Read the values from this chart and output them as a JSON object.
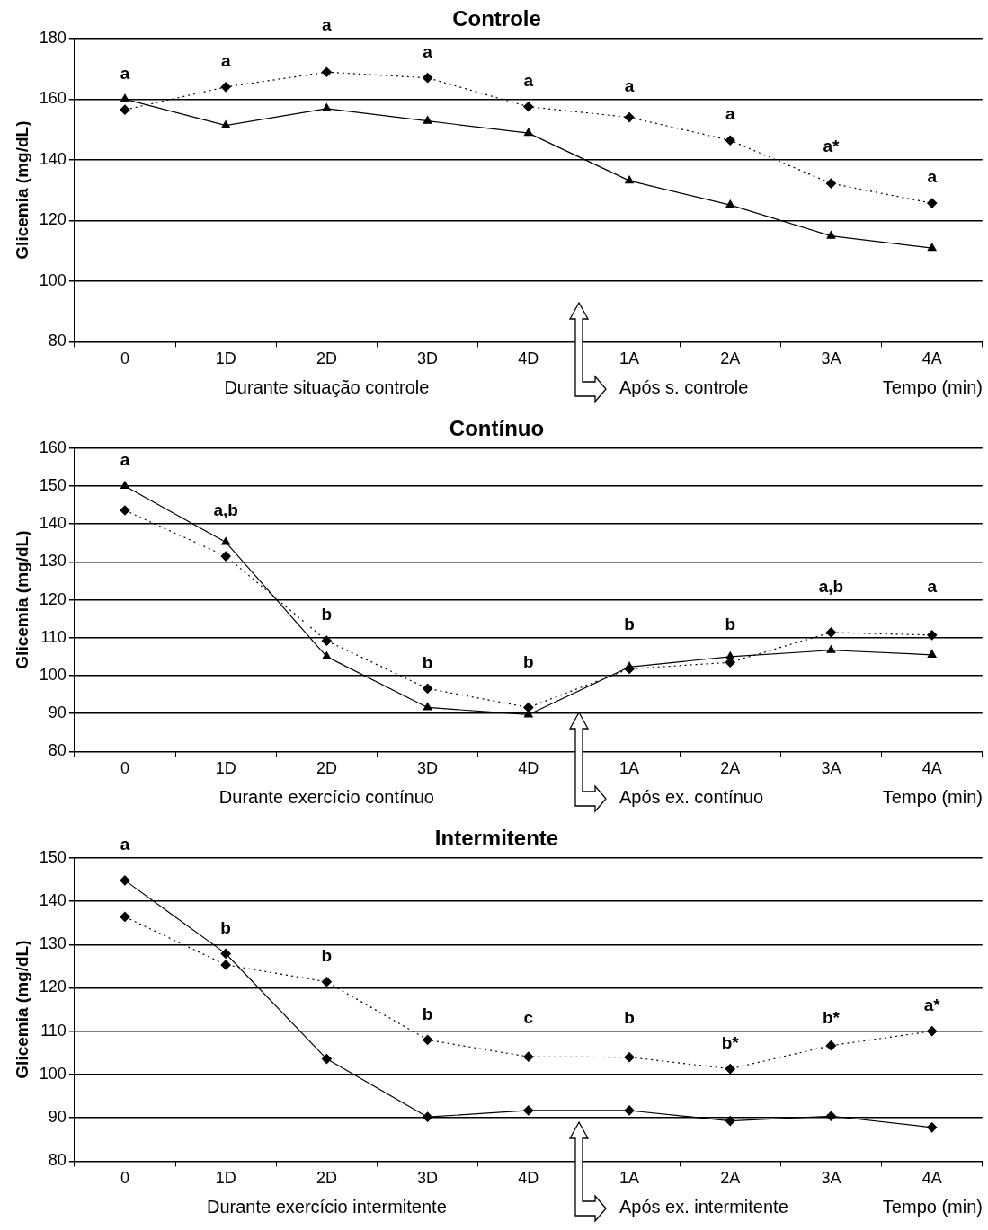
{
  "chart_data": [
    {
      "type": "line",
      "title": "Controle",
      "xlabel": "Tempo (min)",
      "ylabel": "Glicemia (mg/dL)",
      "categories": [
        "0",
        "1D",
        "2D",
        "3D",
        "4D",
        "1A",
        "2A",
        "3A",
        "4A"
      ],
      "ylim": [
        80,
        180
      ],
      "yticks": [
        80,
        100,
        120,
        140,
        160,
        180
      ],
      "grid": "y",
      "series": [
        {
          "color": "#000000",
          "marker": "triangle",
          "line_style": "solid",
          "values": [
            160,
            151.3,
            156.9,
            152.8,
            148.8,
            133.1,
            125.1,
            114.9,
            110.9
          ]
        },
        {
          "color": "#000000",
          "marker": "diamond",
          "line_style": "dotted",
          "values": [
            156.5,
            164,
            168.9,
            167,
            157.5,
            154,
            146.4,
            132.2,
            125.7
          ]
        }
      ],
      "annotations": [
        "a",
        "a",
        "a",
        "a",
        "a",
        "a",
        "a",
        "a*",
        "a",
        "Durante situação controle",
        "Após s. controle"
      ]
    },
    {
      "type": "line",
      "title": "Contínuo",
      "xlabel": "Tempo (min)",
      "ylabel": "Glicemia (mg/dL)",
      "categories": [
        "0",
        "1D",
        "2D",
        "3D",
        "4D",
        "1A",
        "2A",
        "3A",
        "4A"
      ],
      "ylim": [
        80,
        160
      ],
      "yticks": [
        80,
        90,
        100,
        110,
        120,
        130,
        140,
        150,
        160
      ],
      "grid": "y",
      "series": [
        {
          "color": "#000000",
          "marker": "triangle",
          "line_style": "solid",
          "values": [
            150,
            135.2,
            105,
            91.6,
            89.7,
            102.3,
            105,
            106.7,
            105.5
          ]
        },
        {
          "color": "#000000",
          "marker": "diamond",
          "line_style": "dotted",
          "values": [
            143.6,
            131.5,
            109.2,
            96.6,
            91.6,
            101.8,
            103.5,
            111.4,
            110.7
          ]
        }
      ],
      "annotations": [
        "a",
        "a,b",
        "b",
        "b",
        "b",
        "b",
        "b",
        "a,b",
        "a",
        "Durante exercício contínuo",
        "Após ex. contínuo"
      ]
    },
    {
      "type": "line",
      "title": "Intermitente",
      "xlabel": "Tempo (min)",
      "ylabel": "Glicemia (mg/dL)",
      "categories": [
        "0",
        "1D",
        "2D",
        "3D",
        "4D",
        "1A",
        "2A",
        "3A",
        "4A"
      ],
      "ylim": [
        80,
        150
      ],
      "yticks": [
        80,
        90,
        100,
        110,
        120,
        130,
        140,
        150
      ],
      "grid": "y",
      "series": [
        {
          "color": "#000000",
          "marker": "diamond",
          "line_style": "solid",
          "values": [
            144.8,
            127.9,
            103.6,
            90.2,
            91.7,
            91.7,
            89.3,
            90.4,
            87.8
          ]
        },
        {
          "color": "#000000",
          "marker": "diamond",
          "line_style": "dotted",
          "values": [
            136.4,
            125.3,
            121.4,
            108,
            104.1,
            104,
            101.3,
            106.7,
            110
          ]
        }
      ],
      "annotations": [
        "a",
        "b",
        "b",
        "b",
        "c",
        "b",
        "b*",
        "b*",
        "a*",
        "Durante exercício intermitente",
        "Após ex. intermitente"
      ]
    }
  ]
}
